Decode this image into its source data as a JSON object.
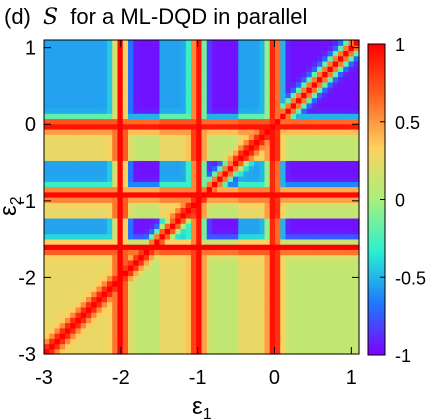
{
  "chart_data": {
    "type": "heatmap",
    "title_prefix": "(d)",
    "title_symbol": "S",
    "title_suffix": "for a ML-DQD in parallel",
    "xlabel": "ε1",
    "xlabel_base": "ε",
    "xlabel_sub": "1",
    "ylabel": "ε2",
    "ylabel_base": "ε",
    "ylabel_sub": "2",
    "xlim": [
      -3,
      1.1
    ],
    "ylim": [
      -3,
      1.1
    ],
    "x_ticks": [
      -3,
      -2,
      -1,
      0,
      1
    ],
    "x_tick_labels": [
      "-3",
      "-2",
      "-1",
      "0",
      "1"
    ],
    "y_ticks": [
      -3,
      -2,
      -1,
      0,
      1
    ],
    "y_tick_labels": [
      "-3",
      "-2",
      "-1",
      "0",
      "1"
    ],
    "colorbar": {
      "range": [
        -1,
        1
      ],
      "ticks": [
        -1,
        -0.5,
        0,
        0.5,
        1
      ],
      "tick_labels": [
        "-1",
        "-0.5",
        "0",
        "0.5",
        "1"
      ],
      "colormap": [
        "#7f00ff",
        "#1e78ff",
        "#2af0d0",
        "#a8f07a",
        "#ffd060",
        "#ff6020",
        "#ff0000"
      ]
    },
    "resonance_lines": [
      -2,
      -1,
      0
    ],
    "regions": "S ≈ +1 (red) along the resonance lines ε1 ≈ -2, -1, 0 and ε2 ≈ -1.6, -0.9, 0; S ≈ -1 (violet) in cells above-right of each crossing; S ≈ -0.6 (cyan) in cells to the left; S ≈ 0.1–0.3 (green/yellow) elsewhere."
  }
}
